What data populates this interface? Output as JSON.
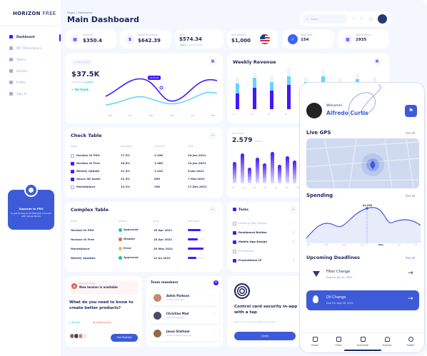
{
  "app": {
    "logo_bold": "HORIZON",
    "logo_light": "FREE"
  },
  "header": {
    "breadcrumb": "Pages / Dashboard",
    "title": "Main Dashboard",
    "search_placeholder": "Search"
  },
  "sidebar": {
    "items": [
      {
        "label": "Dashboard",
        "icon": "home-icon",
        "active": true
      },
      {
        "label": "NFT Marketplace",
        "icon": "cart-icon"
      },
      {
        "label": "Tables",
        "icon": "table-icon"
      },
      {
        "label": "Kanban",
        "icon": "kanban-icon"
      },
      {
        "label": "Profile",
        "icon": "user-icon"
      },
      {
        "label": "Sign In",
        "icon": "lock-icon"
      }
    ],
    "upgrade": {
      "title": "Upgrade to PRO",
      "text": "to get access to all features! Connect with Venus World!"
    }
  },
  "stats": [
    {
      "label": "Earnings",
      "value": "$350.4",
      "icon": "chart-icon"
    },
    {
      "label": "Spend this month",
      "value": "$642.39",
      "icon": "dollar-icon"
    },
    {
      "label": "Sales",
      "value": "$574.34",
      "sub_highlight": "+23%",
      "sub_text": "since last month"
    },
    {
      "label": "Your balance",
      "value": "$1,000",
      "icon": "flag-icon"
    },
    {
      "label": "New Tasks",
      "value": "154",
      "icon": "check-icon"
    },
    {
      "label": "Total Projects",
      "value": "2935",
      "icon": "file-icon"
    }
  ],
  "total_spent": {
    "period": "This month",
    "value": "$37.5K",
    "label": "Total Spent",
    "change": "+2.45%",
    "status": "On track",
    "tooltip": "$108.00",
    "months": [
      "SEP",
      "OCT",
      "NOV",
      "DEC",
      "JAN",
      "FEB"
    ]
  },
  "weekly_revenue": {
    "title": "Weekly Revenue",
    "days": [
      "17",
      "18",
      "19",
      "20",
      "21",
      "22",
      "23",
      "24",
      "25"
    ]
  },
  "check_table": {
    "title": "Check Table",
    "columns": [
      "NAME",
      "PROGRESS",
      "QUANTITY",
      "DATE"
    ],
    "rows": [
      {
        "name": "Horizon UI PRO",
        "progress": "17.5%",
        "quantity": "2.458",
        "date": "24.Jan.2021",
        "checked": false
      },
      {
        "name": "Horizon UI Free",
        "progress": "10.8%",
        "quantity": "1.485",
        "date": "12.Jun.2021",
        "checked": true
      },
      {
        "name": "Weekly Update",
        "progress": "21.3%",
        "quantity": "1.024",
        "date": "5.Jan.2021",
        "checked": true
      },
      {
        "name": "Venus 3D Asset",
        "progress": "31.5%",
        "quantity": "858",
        "date": "7.Mar.2021",
        "checked": true
      },
      {
        "name": "Marketplace",
        "progress": "12.2%",
        "quantity": "258",
        "date": "17.Dec.2021",
        "checked": false
      }
    ]
  },
  "daily_traffic": {
    "label": "Daily Traffic",
    "value": "2.579",
    "unit": "Visitors",
    "hours": [
      "00",
      "04",
      "08",
      "12",
      "14",
      "16",
      "18"
    ]
  },
  "complex_table": {
    "title": "Complex Table",
    "columns": [
      "NAME",
      "STATUS",
      "DATE",
      "PROGRESS"
    ],
    "rows": [
      {
        "name": "Horizon UI PRO",
        "status": "Approved",
        "date": "18 Apr 2021",
        "progress": 0.75,
        "color": "#05cd99"
      },
      {
        "name": "Horizon UI Free",
        "status": "Disable",
        "date": "18 Apr 2021",
        "progress": 0.6,
        "color": "#ee5d50"
      },
      {
        "name": "Marketplace",
        "status": "Error",
        "date": "20 May 2021",
        "progress": 0.9,
        "color": "#ffb547"
      },
      {
        "name": "Weekly Updates",
        "status": "Approved",
        "date": "12 Jul 2021",
        "progress": 0.5,
        "color": "#05cd99"
      }
    ]
  },
  "tasks": {
    "title": "Tasks",
    "items": [
      {
        "label": "Landing Page Design",
        "checked": false
      },
      {
        "label": "Dashboard Builder",
        "checked": true
      },
      {
        "label": "Mobile App Design",
        "checked": true
      },
      {
        "label": "Illustrations",
        "checked": false
      },
      {
        "label": "Promotional LP",
        "checked": true
      }
    ]
  },
  "business": {
    "badge_title": "Business Design",
    "badge_sub": "New lession is available",
    "question": "What do you need to know to create better products?",
    "time": "85 min",
    "video": "Video format",
    "cta": "Get Started"
  },
  "team": {
    "title": "Team members",
    "members": [
      {
        "name": "Adela Parkson",
        "role": "Creative Director"
      },
      {
        "name": "Christian Mad",
        "role": "Product Designer"
      },
      {
        "name": "Jason Statham",
        "role": "Junior Graphic Designer"
      }
    ]
  },
  "security": {
    "title": "Control card security in-app with a tap",
    "text": "Discover our cards benefits, with one tap.",
    "cta": "Cards"
  },
  "mobile": {
    "greeting": "Welcome!",
    "user": "Alfredo Curtis",
    "gps_title": "Live GPS",
    "gps_link": "See all",
    "spending_title": "Spending",
    "spending_link": "See all",
    "spending_value": "$1,230",
    "spending_months": [
      "Jan",
      "Feb",
      "Mar",
      "Apr",
      "May",
      "Jun",
      "Jul"
    ],
    "deadlines_title": "Upcoming Deadlines",
    "deadlines_link": "See all",
    "deadlines": [
      {
        "title": "Filter Change",
        "due": "Due On: Jan 12, 2022"
      },
      {
        "title": "Oil Change",
        "due": "Due On: Aug 18, 2022"
      }
    ],
    "tabs": [
      "Home",
      "Fleet",
      "Schedule",
      "Activity",
      "Profile"
    ]
  },
  "colors": {
    "primary": "#4318ff",
    "navy": "#1b2559",
    "muted": "#a3aed0",
    "success": "#05cd99",
    "blue": "#3965ff"
  }
}
